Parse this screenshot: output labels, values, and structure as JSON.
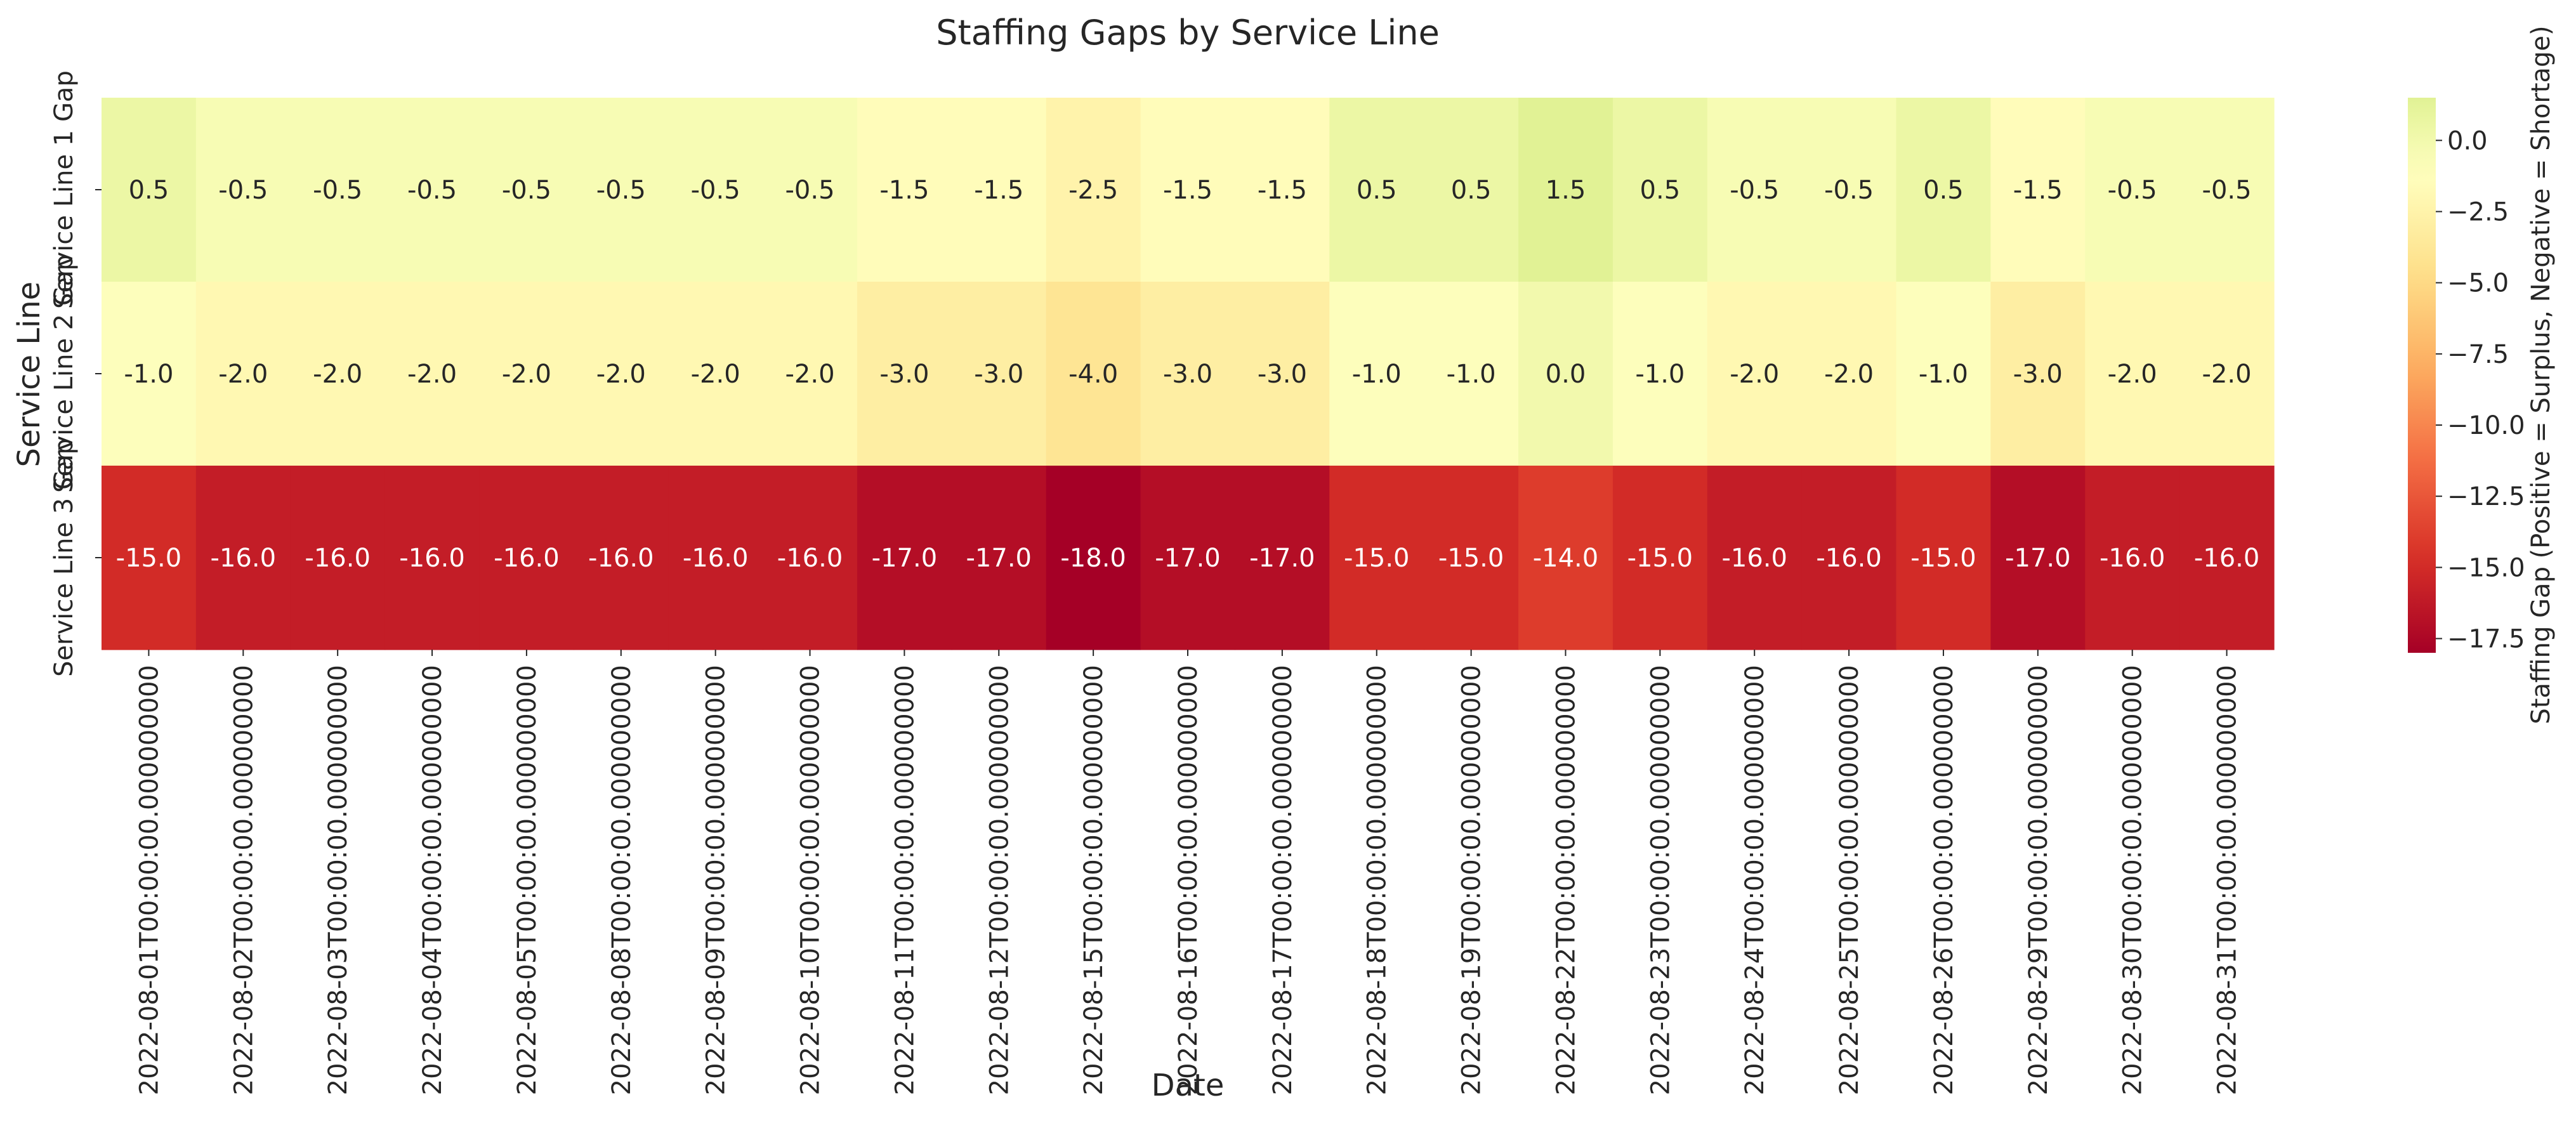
{
  "chart_data": {
    "type": "heatmap",
    "title": "Staffing Gaps by Service Line",
    "xlabel": "Date",
    "ylabel": "Service Line",
    "x": [
      "2022-08-01T00:00:00.000000000",
      "2022-08-02T00:00:00.000000000",
      "2022-08-03T00:00:00.000000000",
      "2022-08-04T00:00:00.000000000",
      "2022-08-05T00:00:00.000000000",
      "2022-08-08T00:00:00.000000000",
      "2022-08-09T00:00:00.000000000",
      "2022-08-10T00:00:00.000000000",
      "2022-08-11T00:00:00.000000000",
      "2022-08-12T00:00:00.000000000",
      "2022-08-15T00:00:00.000000000",
      "2022-08-16T00:00:00.000000000",
      "2022-08-17T00:00:00.000000000",
      "2022-08-18T00:00:00.000000000",
      "2022-08-19T00:00:00.000000000",
      "2022-08-22T00:00:00.000000000",
      "2022-08-23T00:00:00.000000000",
      "2022-08-24T00:00:00.000000000",
      "2022-08-25T00:00:00.000000000",
      "2022-08-26T00:00:00.000000000",
      "2022-08-29T00:00:00.000000000",
      "2022-08-30T00:00:00.000000000",
      "2022-08-31T00:00:00.000000000"
    ],
    "y": [
      "Service Line 1 Gap",
      "Service Line 2 Gap",
      "Service Line 3 Gap"
    ],
    "values": [
      [
        0.5,
        -0.5,
        -0.5,
        -0.5,
        -0.5,
        -0.5,
        -0.5,
        -0.5,
        -1.5,
        -1.5,
        -2.5,
        -1.5,
        -1.5,
        0.5,
        0.5,
        1.5,
        0.5,
        -0.5,
        -0.5,
        0.5,
        -1.5,
        -0.5,
        -0.5
      ],
      [
        -1.0,
        -2.0,
        -2.0,
        -2.0,
        -2.0,
        -2.0,
        -2.0,
        -2.0,
        -3.0,
        -3.0,
        -4.0,
        -3.0,
        -3.0,
        -1.0,
        -1.0,
        0.0,
        -1.0,
        -2.0,
        -2.0,
        -1.0,
        -3.0,
        -2.0,
        -2.0
      ],
      [
        -15.0,
        -16.0,
        -16.0,
        -16.0,
        -16.0,
        -16.0,
        -16.0,
        -16.0,
        -17.0,
        -17.0,
        -18.0,
        -17.0,
        -17.0,
        -15.0,
        -15.0,
        -14.0,
        -15.0,
        -16.0,
        -16.0,
        -15.0,
        -17.0,
        -16.0,
        -16.0
      ]
    ],
    "value_format": "0.0",
    "colormap": "RdYlGn",
    "vmin": -18.0,
    "vmax": 1.5,
    "colorbar": {
      "label": "Staffing Gap (Positive = Surplus, Negative = Shortage)",
      "ticks": [
        0.0,
        -2.5,
        -5.0,
        -7.5,
        -10.0,
        -12.5,
        -15.0,
        -17.5
      ],
      "tick_labels": [
        "0.0",
        "−2.5",
        "−5.0",
        "−7.5",
        "−10.0",
        "−12.5",
        "−15.0",
        "−17.5"
      ],
      "placement": "right"
    },
    "grid": false
  }
}
